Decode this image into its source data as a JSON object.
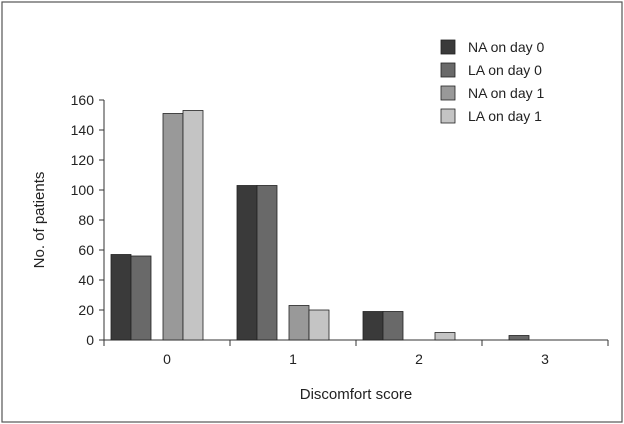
{
  "chart_data": {
    "type": "bar",
    "categories": [
      "0",
      "1",
      "2",
      "3"
    ],
    "series": [
      {
        "name": "NA on day 0",
        "color": "#3a3a3a",
        "values": [
          57,
          103,
          19,
          0
        ]
      },
      {
        "name": "LA on day 0",
        "color": "#696969",
        "values": [
          56,
          103,
          19,
          3
        ]
      },
      {
        "name": "NA on day 1",
        "color": "#999999",
        "values": [
          151,
          23,
          0,
          0
        ]
      },
      {
        "name": "LA on day 1",
        "color": "#c4c4c4",
        "values": [
          153,
          20,
          5,
          0
        ]
      }
    ],
    "ylabel": "No. of patients",
    "xlabel": "Discomfort score",
    "ylim": [
      0,
      160
    ],
    "yticks": [
      0,
      20,
      40,
      60,
      80,
      100,
      120,
      140,
      160
    ],
    "grid": false,
    "legend_position": "top-right"
  }
}
